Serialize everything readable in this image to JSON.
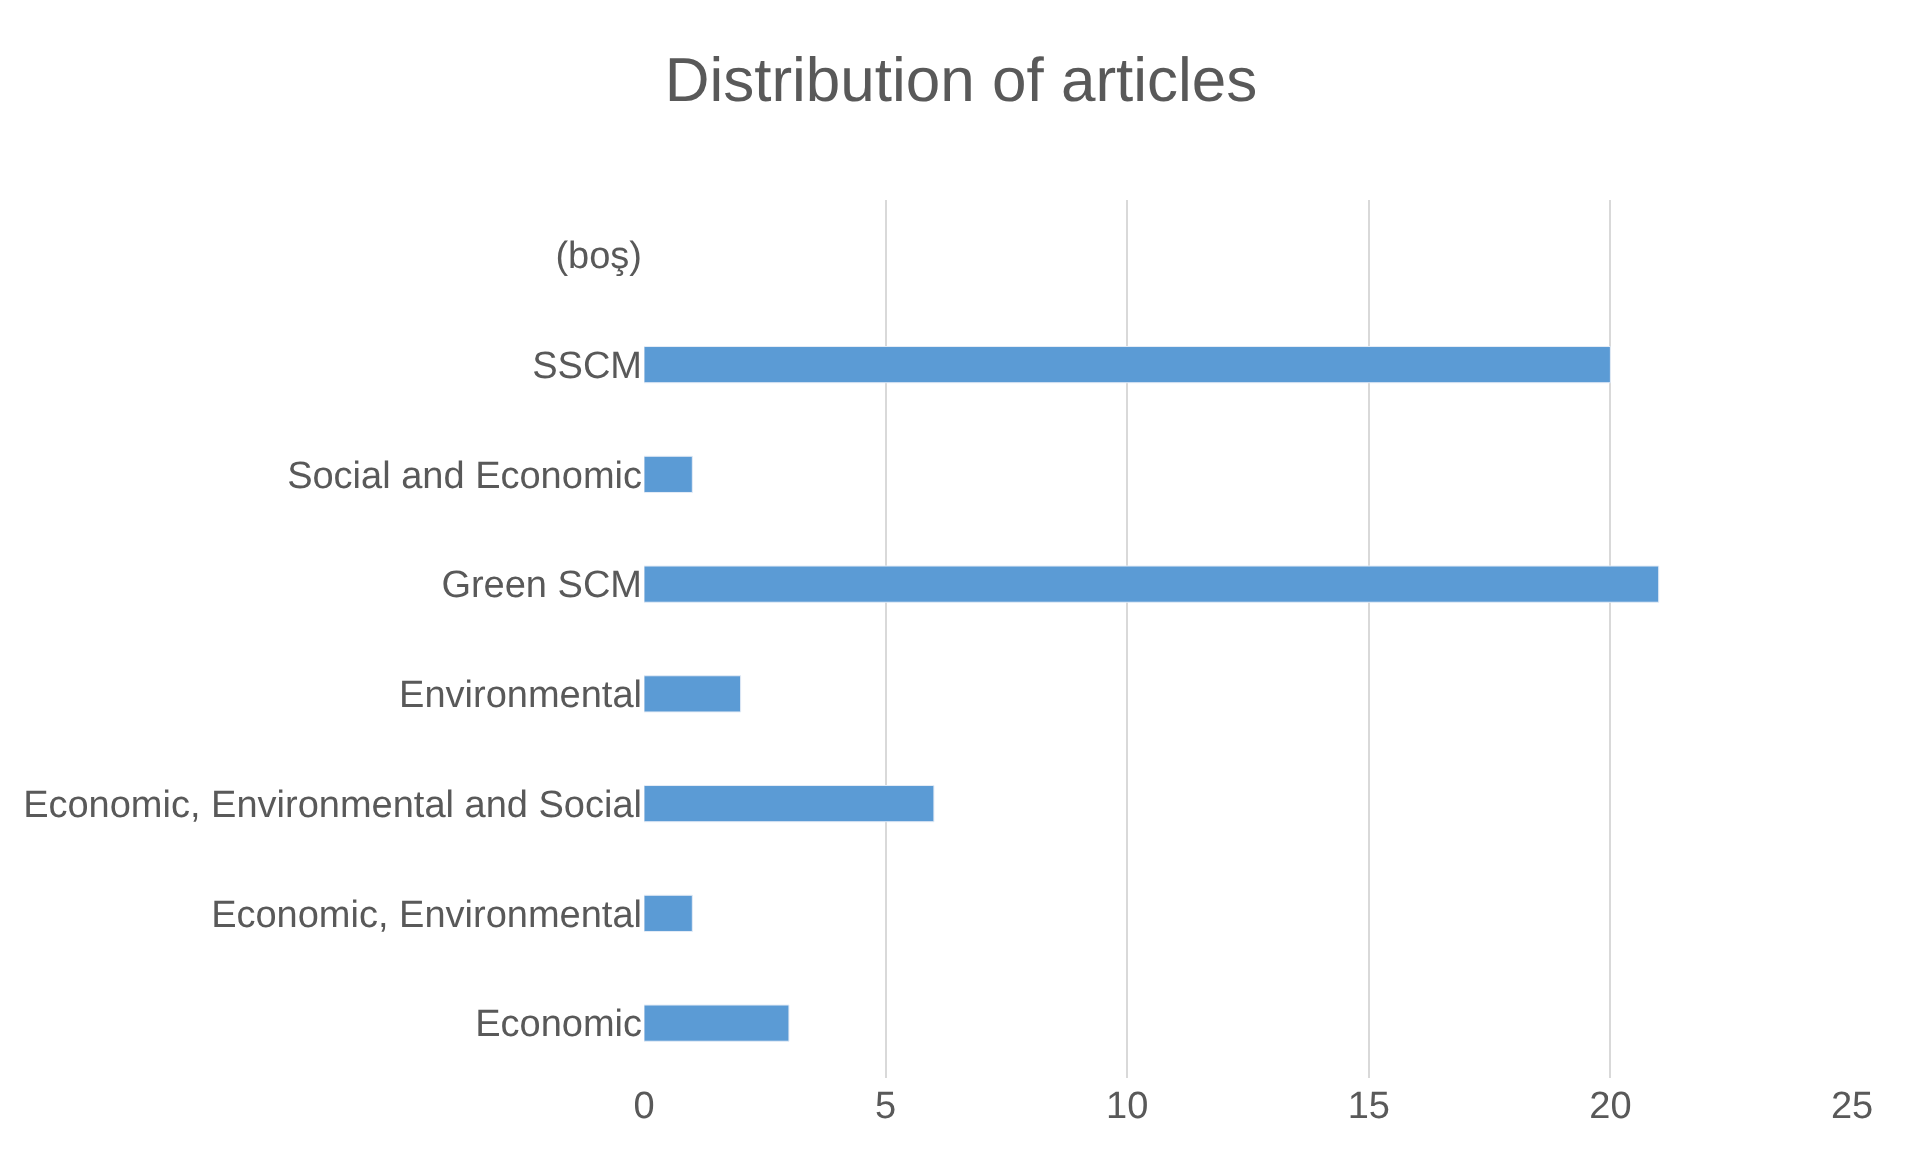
{
  "chart_data": {
    "type": "bar",
    "orientation": "horizontal",
    "title": "Distribution of articles",
    "categories": [
      "(boş)",
      "SSCM",
      "Social and Economic",
      "Green SCM",
      "Environmental",
      "Economic, Environmental and Social",
      "Economic, Environmental",
      "Economic"
    ],
    "values": [
      null,
      20,
      1,
      21,
      2,
      6,
      1,
      3
    ],
    "color": "#5b9bd5",
    "xlim": [
      0,
      25
    ],
    "xticks": [
      0,
      5,
      10,
      15,
      20,
      25
    ],
    "grid": "x"
  }
}
